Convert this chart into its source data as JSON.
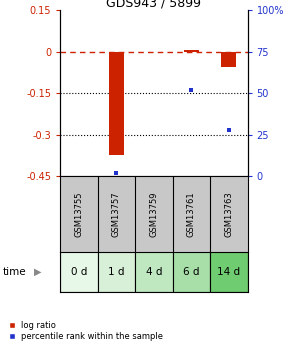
{
  "title": "GDS943 / 5899",
  "samples": [
    "GSM13755",
    "GSM13757",
    "GSM13759",
    "GSM13761",
    "GSM13763"
  ],
  "time_labels": [
    "0 d",
    "1 d",
    "4 d",
    "6 d",
    "14 d"
  ],
  "log_ratio": [
    0.0,
    -0.375,
    null,
    0.005,
    -0.055
  ],
  "percentile": [
    null,
    2.0,
    null,
    52.0,
    28.0
  ],
  "ylim_left": [
    -0.45,
    0.15
  ],
  "ylim_right": [
    0,
    100
  ],
  "yticks_left": [
    -0.45,
    -0.3,
    -0.15,
    0,
    0.15
  ],
  "ytick_labels_left": [
    "-0.45",
    "-0.3",
    "-0.15",
    "0",
    "0.15"
  ],
  "yticks_right": [
    0,
    25,
    50,
    75,
    100
  ],
  "ytick_labels_right": [
    "0",
    "25",
    "50",
    "75",
    "100%"
  ],
  "hline_y": 0.0,
  "dotted_lines": [
    -0.15,
    -0.3
  ],
  "bar_color": "#cc2200",
  "point_color": "#2233cc",
  "bar_width": 0.4,
  "background_color": "#ffffff",
  "plot_bg": "#ffffff",
  "gsm_bg": "#c8c8c8",
  "time_colors": [
    "#e8f8e8",
    "#d8f0d8",
    "#c0e8c0",
    "#a8dfa8",
    "#70cc70"
  ],
  "legend_log_ratio": "log ratio",
  "legend_percentile": "percentile rank within the sample"
}
